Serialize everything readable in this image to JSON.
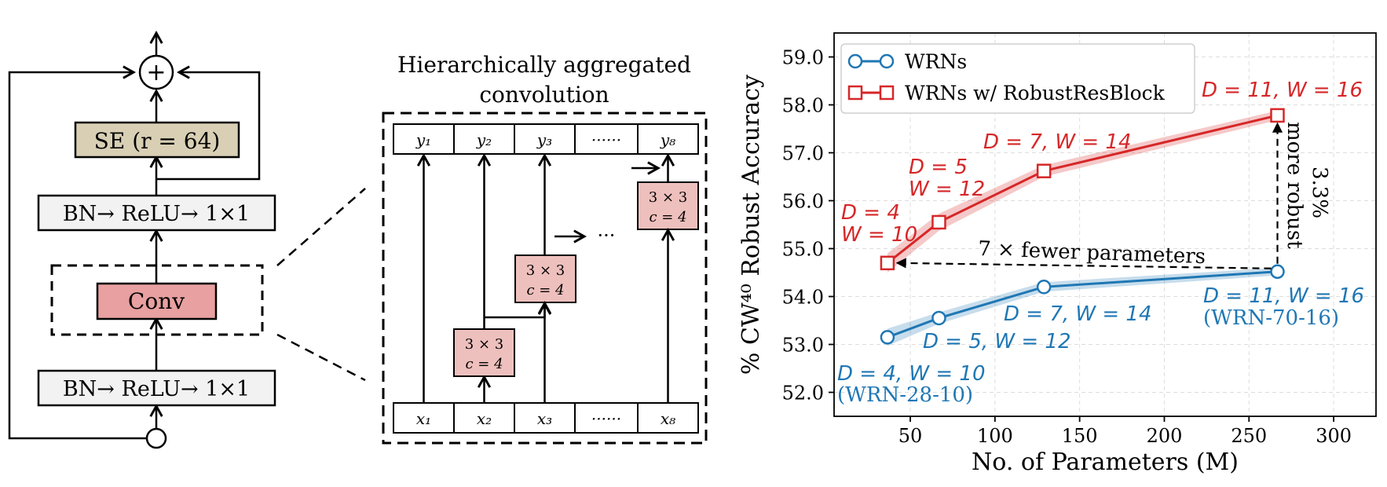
{
  "block": {
    "se_label": "SE (r = 64)",
    "bn_top_label": "BN→ ReLU→ 1×1",
    "conv_label": "Conv",
    "bn_bottom_label": "BN→ ReLU→ 1×1",
    "plus_symbol": "+",
    "colors": {
      "se_fill": "#d8cfb4",
      "bn_fill": "#f2f2f2",
      "conv_fill": "#e8a0a0"
    }
  },
  "hac": {
    "title_line1": "Hierarchically aggregated",
    "title_line2": "convolution",
    "outputs": [
      "y₁",
      "y₂",
      "y₃",
      "······",
      "y₈"
    ],
    "inputs": [
      "x₁",
      "x₂",
      "x₃",
      "······",
      "x₈"
    ],
    "conv_box_line1": "3 × 3",
    "conv_box_line2": "c = 4",
    "ellipsis": "···",
    "colors": {
      "conv_fill": "#eec0bd"
    }
  },
  "chart_data": {
    "type": "line",
    "xlabel": "No. of Parameters (M)",
    "ylabel": "% CW⁴⁰ Robust Accuracy",
    "xlim": [
      5,
      325
    ],
    "ylim": [
      51.5,
      59.5
    ],
    "xticks": [
      50,
      100,
      150,
      200,
      250,
      300
    ],
    "yticks": [
      52.0,
      53.0,
      54.0,
      55.0,
      56.0,
      57.0,
      58.0,
      59.0
    ],
    "grid": true,
    "legend_position": "top-left",
    "series": [
      {
        "name": "WRNs",
        "color": "#1f77b4",
        "marker": "circle",
        "x": [
          36.5,
          66.9,
          128.9,
          266.8
        ],
        "y": [
          53.15,
          53.55,
          54.2,
          54.52
        ],
        "band": [
          0.18,
          0.12,
          0.1,
          0.08
        ]
      },
      {
        "name": "WRNs w/ RobustResBlock",
        "color": "#d62728",
        "marker": "square",
        "x": [
          36.5,
          66.9,
          128.9,
          266.8
        ],
        "y": [
          54.7,
          55.55,
          56.62,
          57.78
        ],
        "band": [
          0.2,
          0.18,
          0.12,
          0.1
        ]
      }
    ],
    "annotations": {
      "blue_labels": [
        {
          "line1": "D = 4, W = 10",
          "line2": "(WRN-28-10)"
        },
        {
          "line1": "D = 5, W = 12",
          "line2": ""
        },
        {
          "line1": "D = 7, W = 14",
          "line2": ""
        },
        {
          "line1": "D = 11, W = 16",
          "line2": "(WRN-70-16)"
        }
      ],
      "red_labels": [
        {
          "line1": "D = 4",
          "line2": "W = 10"
        },
        {
          "line1": "D = 5",
          "line2": "W = 12"
        },
        {
          "line1": "D = 7, W = 14",
          "line2": ""
        },
        {
          "line1": "D = 11, W = 16",
          "line2": ""
        }
      ],
      "fewer_params": "7 ×  fewer parameters",
      "more_robust_pct": "3.3%",
      "more_robust_text": "more robust"
    }
  }
}
